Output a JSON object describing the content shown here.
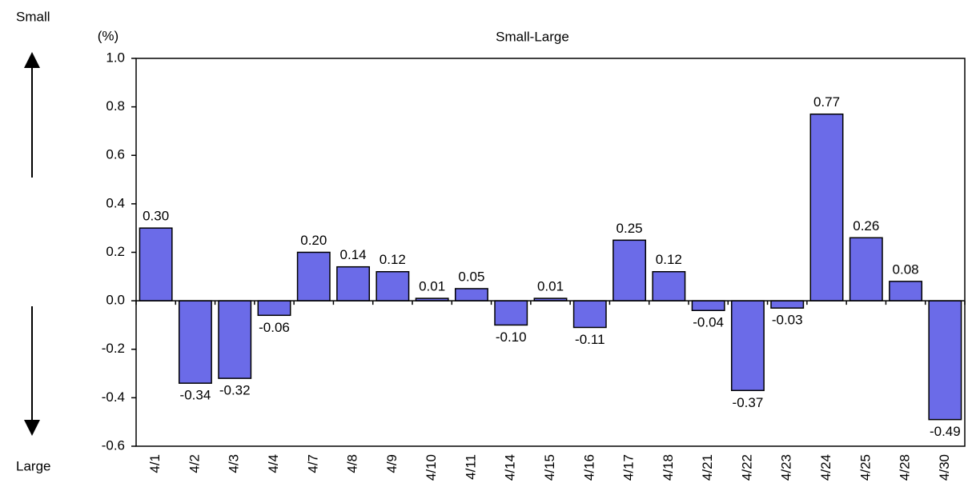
{
  "chart_data": {
    "type": "bar",
    "title": "Small-Large",
    "y_unit_label": "(%)",
    "top_label": "Small",
    "bottom_label": "Large",
    "categories": [
      "4/1",
      "4/2",
      "4/3",
      "4/4",
      "4/7",
      "4/8",
      "4/9",
      "4/10",
      "4/11",
      "4/14",
      "4/15",
      "4/16",
      "4/17",
      "4/18",
      "4/21",
      "4/22",
      "4/23",
      "4/24",
      "4/25",
      "4/28",
      "4/30"
    ],
    "values": [
      0.3,
      -0.34,
      -0.32,
      -0.06,
      0.2,
      0.14,
      0.12,
      0.01,
      0.05,
      -0.1,
      0.01,
      -0.11,
      0.25,
      0.12,
      -0.04,
      -0.37,
      -0.03,
      0.77,
      0.26,
      0.08,
      -0.49
    ],
    "value_labels": [
      "0.30",
      "-0.34",
      "-0.32",
      "-0.06",
      "0.20",
      "0.14",
      "0.12",
      "0.01",
      "0.05",
      "-0.10",
      "0.01",
      "-0.11",
      "0.25",
      "0.12",
      "-0.04",
      "-0.37",
      "-0.03",
      "0.77",
      "0.26",
      "0.08",
      "-0.49"
    ],
    "color": "#6b6be8",
    "ylim": [
      -0.6,
      1.0
    ],
    "yticks": [
      {
        "value": -0.6,
        "label": "-0.6"
      },
      {
        "value": -0.4,
        "label": "-0.4"
      },
      {
        "value": -0.2,
        "label": "-0.2"
      },
      {
        "value": 0,
        "label": "0.0"
      },
      {
        "value": 0.2,
        "label": "0.2"
      },
      {
        "value": 0.4,
        "label": "0.4"
      },
      {
        "value": 0.6,
        "label": "0.6"
      },
      {
        "value": 0.8,
        "label": "0.8"
      },
      {
        "value": 1.0,
        "label": "1.0"
      }
    ],
    "grid": false
  }
}
